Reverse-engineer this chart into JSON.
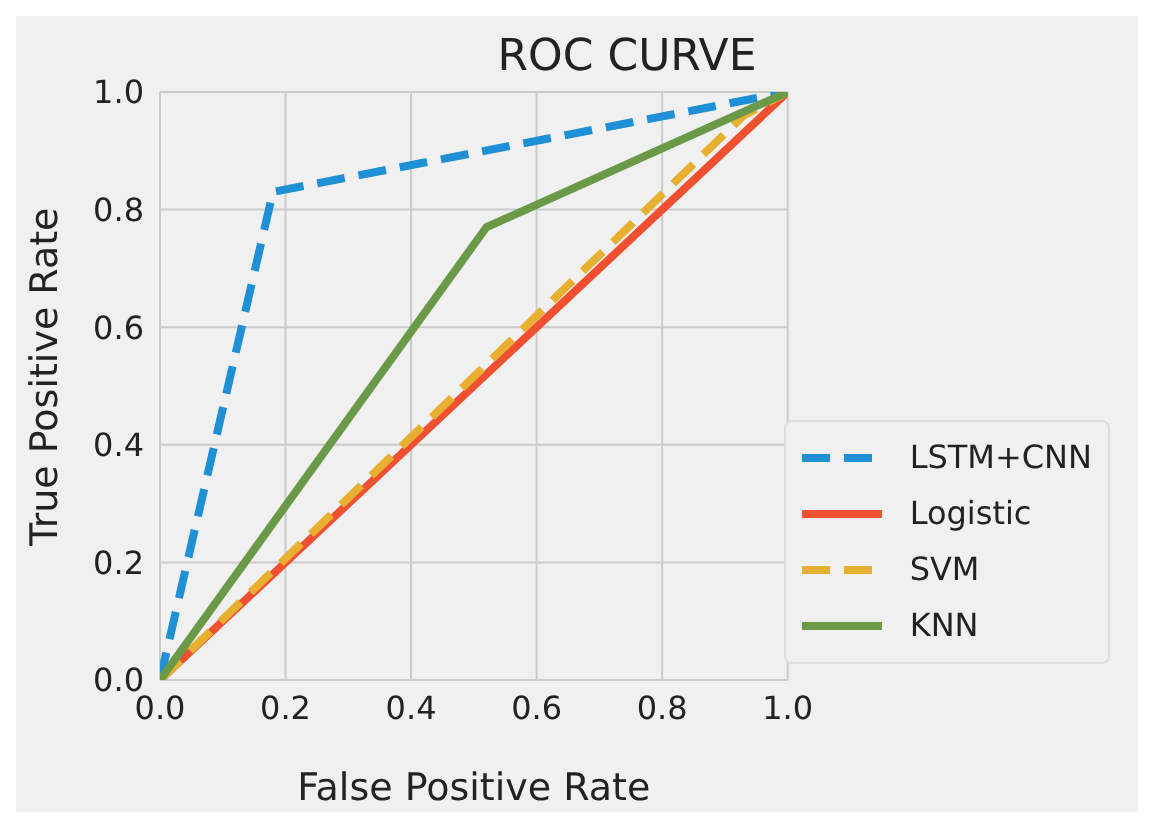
{
  "chart_data": {
    "type": "line",
    "title": "ROC CURVE",
    "xlabel": "False Positive Rate",
    "ylabel": "True Positive Rate",
    "xlim": [
      0,
      1
    ],
    "ylim": [
      0,
      1
    ],
    "xticks": [
      {
        "value": 0,
        "label": "0.0"
      },
      {
        "value": 0.2,
        "label": "0.2"
      },
      {
        "value": 0.4,
        "label": "0.4"
      },
      {
        "value": 0.6,
        "label": "0.6"
      },
      {
        "value": 0.8,
        "label": "0.8"
      },
      {
        "value": 1,
        "label": "1.0"
      }
    ],
    "yticks": [
      {
        "value": 0,
        "label": "0.0"
      },
      {
        "value": 0.2,
        "label": "0.2"
      },
      {
        "value": 0.4,
        "label": "0.4"
      },
      {
        "value": 0.6,
        "label": "0.6"
      },
      {
        "value": 0.8,
        "label": "0.8"
      },
      {
        "value": 1,
        "label": "1.0"
      }
    ],
    "grid": true,
    "legend": "bottom right",
    "marker": "none",
    "series": [
      {
        "name": "LSTM+CNN",
        "color": "#1f8fd6",
        "line_style": "dashed",
        "x": [
          0,
          0.18,
          1
        ],
        "values": [
          0,
          0.83,
          1
        ]
      },
      {
        "name": "Logistic",
        "color": "#f05030",
        "line_style": "solid",
        "x": [
          0,
          1
        ],
        "values": [
          0,
          1
        ]
      },
      {
        "name": "SVM",
        "color": "#e8b030",
        "line_style": "dashed",
        "x": [
          0,
          0.93,
          1
        ],
        "values": [
          0,
          0.96,
          1
        ]
      },
      {
        "name": "KNN",
        "color": "#6a9a48",
        "line_style": "solid",
        "x": [
          0,
          0.52,
          1
        ],
        "values": [
          0,
          0.77,
          1
        ]
      }
    ]
  }
}
